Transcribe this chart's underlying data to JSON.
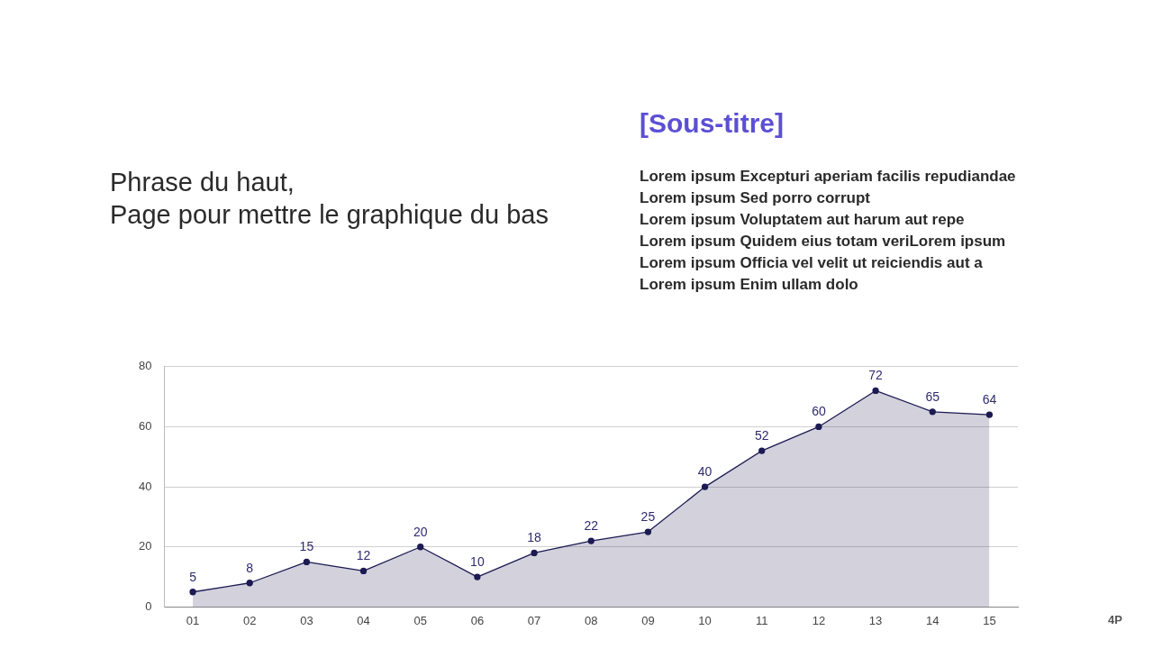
{
  "chart_data": {
    "type": "area",
    "title": "Phrase du haut,\nPage pour mettre le graphique du bas",
    "subtitle": "[Sous-titre]",
    "annotations": [
      "Lorem ipsum Excepturi aperiam facilis repudiandae",
      "Lorem ipsum Sed porro corrupt",
      "Lorem ipsum Voluptatem aut harum aut repe",
      "Lorem ipsum Quidem eius totam veriLorem ipsum",
      "Lorem ipsum Officia vel velit ut reiciendis aut a",
      "Lorem ipsum Enim ullam dolo",
      "4P"
    ],
    "categories": [
      "01",
      "02",
      "03",
      "04",
      "05",
      "06",
      "07",
      "08",
      "09",
      "10",
      "11",
      "12",
      "13",
      "14",
      "15"
    ],
    "series": [
      {
        "color": "#1c1a52",
        "values": [
          5,
          8,
          15,
          12,
          20,
          10,
          18,
          22,
          25,
          40,
          52,
          60,
          72,
          65,
          64
        ]
      }
    ],
    "ylim": [
      0,
      80
    ],
    "yticks": [
      0,
      20,
      40,
      60,
      80
    ],
    "grid": "y",
    "legend": false,
    "marker": "circle",
    "line_style": "solid",
    "data_labels": true
  }
}
